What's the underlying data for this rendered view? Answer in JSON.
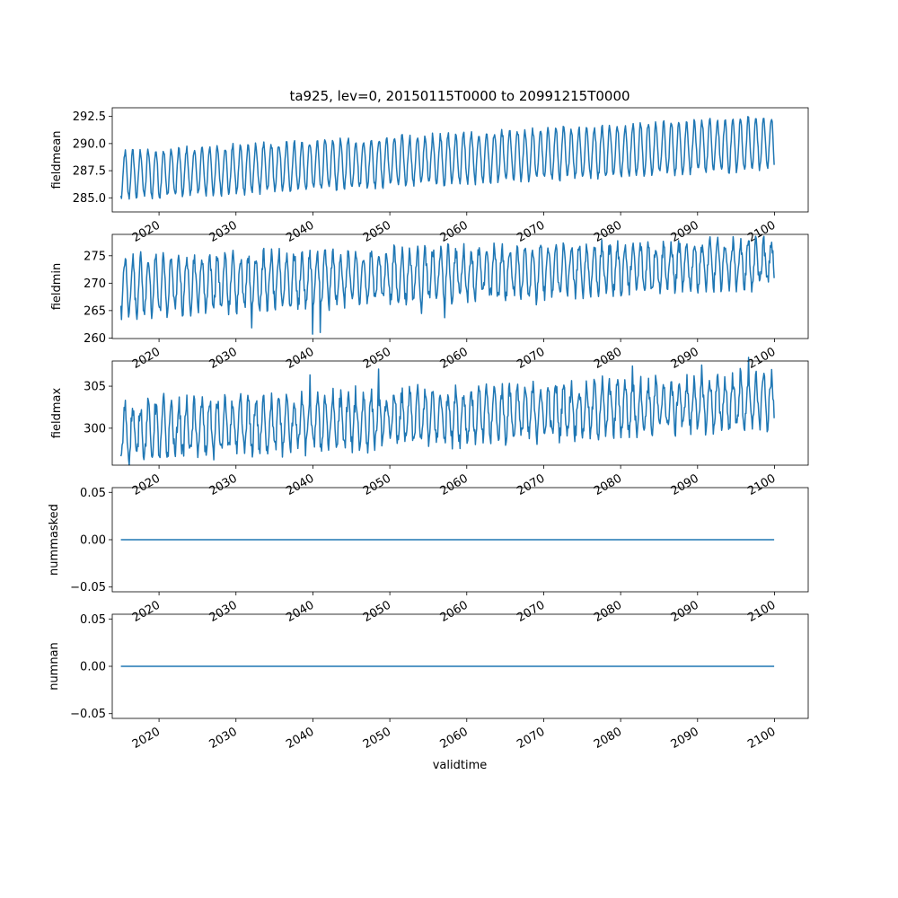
{
  "title": "ta925, lev=0, 20150115T0000 to 20991215T0000",
  "xlabel": "validtime",
  "line_color": "#1f77b4",
  "x_ticks": [
    "2020",
    "2030",
    "2040",
    "2050",
    "2060",
    "2070",
    "2080",
    "2090",
    "2100"
  ],
  "chart_data": [
    {
      "type": "line",
      "ylabel": "fieldmean",
      "x_start": "2015-01-15",
      "x_end": "2099-12-15",
      "x_step": "1 month",
      "xlim": [
        "2013-12",
        "2104-05"
      ],
      "ylim": [
        283.7,
        293.3
      ],
      "yticks": [
        "285.0",
        "287.5",
        "290.0",
        "292.5"
      ],
      "seasonal_cycle": {
        "min_start": 285.0,
        "min_end": 287.7,
        "max_start": 289.2,
        "max_end": 292.4,
        "peak_month": "July"
      },
      "values_2015_2099": "monthly means oscillating annually; winter lows rise from ~285.0 to ~287.7, summer highs rise from ~289.2 to ~292.5",
      "grid": false
    },
    {
      "type": "line",
      "ylabel": "fieldmin",
      "x_start": "2015-01-15",
      "x_end": "2099-12-15",
      "x_step": "1 month",
      "xlim": [
        "2013-12",
        "2104-05"
      ],
      "ylim": [
        259.9,
        278.9
      ],
      "yticks": [
        "260",
        "265",
        "270",
        "275"
      ],
      "seasonal_cycle": {
        "min_start": 264.5,
        "min_end": 270.0,
        "max_start": 274.5,
        "max_end": 277.5,
        "peak_month": "July"
      },
      "extremes": [
        {
          "x": "2039-12",
          "y": 260.7
        },
        {
          "x": "2040-12",
          "y": 261.0
        },
        {
          "x": "2098-07",
          "y": 278.2
        }
      ],
      "grid": false
    },
    {
      "type": "line",
      "ylabel": "fieldmax",
      "x_start": "2015-01-15",
      "x_end": "2099-12-15",
      "x_step": "1 month",
      "xlim": [
        "2013-12",
        "2104-05"
      ],
      "ylim": [
        295.6,
        308.0
      ],
      "yticks": [
        "300",
        "305"
      ],
      "seasonal_cycle": {
        "min_start": 296.5,
        "min_end": 300.5,
        "max_start": 302.5,
        "max_end": 306.0,
        "peak_month": "July"
      },
      "extremes": [
        {
          "x": "2081-07",
          "y": 307.4
        },
        {
          "x": "2095-07",
          "y": 307.1
        }
      ],
      "grid": false
    },
    {
      "type": "line",
      "ylabel": "nummasked",
      "x_start": "2015-01-15",
      "x_end": "2099-12-15",
      "xlim": [
        "2013-12",
        "2104-05"
      ],
      "ylim": [
        -0.055,
        0.055
      ],
      "yticks": [
        "−0.05",
        "0.00",
        "0.05"
      ],
      "values": "constant 0.00",
      "grid": false
    },
    {
      "type": "line",
      "ylabel": "numnan",
      "x_start": "2015-01-15",
      "x_end": "2099-12-15",
      "xlim": [
        "2013-12",
        "2104-05"
      ],
      "ylim": [
        -0.055,
        0.055
      ],
      "yticks": [
        "−0.05",
        "0.00",
        "0.05"
      ],
      "values": "constant 0.00",
      "grid": false
    }
  ]
}
